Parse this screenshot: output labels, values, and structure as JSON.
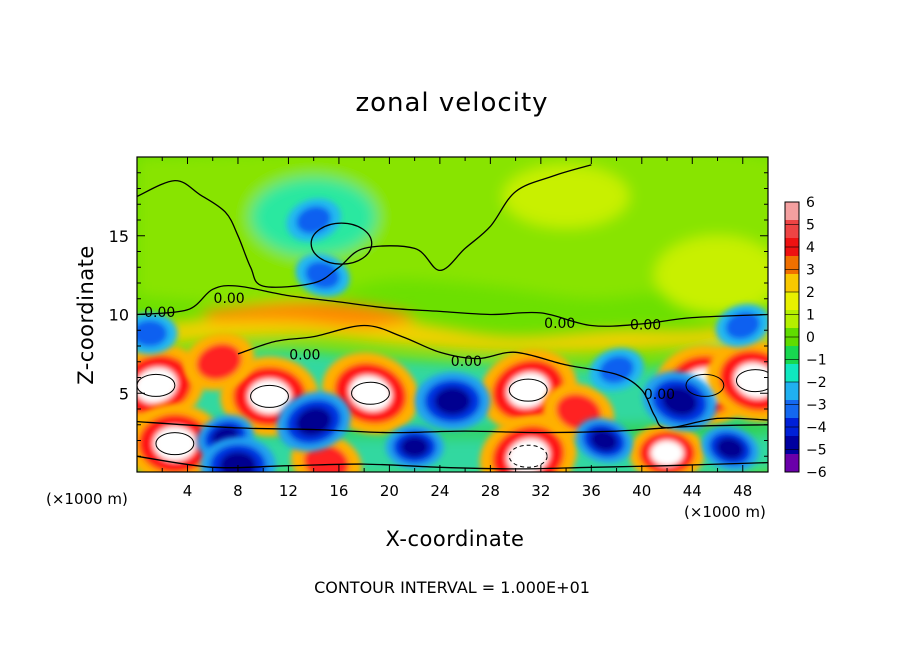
{
  "chart_data": {
    "type": "heatmap",
    "title": "zonal velocity",
    "xlabel": "X-coordinate",
    "ylabel": "Z-coordinate",
    "x_unit_label_left": "(×1000 m)",
    "x_unit_label_right": "(×1000 m)",
    "xlim": [
      0,
      50
    ],
    "ylim": [
      0,
      20
    ],
    "xticks": [
      4,
      8,
      12,
      16,
      20,
      24,
      28,
      32,
      36,
      40,
      44,
      48
    ],
    "yticks": [
      5,
      10,
      15
    ],
    "colorbar": {
      "min": -6,
      "max": 6,
      "ticks": [
        "6",
        "5",
        "4",
        "3",
        "2",
        "1",
        "0",
        "−1",
        "−2",
        "−3",
        "−4",
        "−5",
        "−6"
      ],
      "colors": [
        "#f4a0a0",
        "#ee4444",
        "#ee1111",
        "#f07000",
        "#f8c800",
        "#e8f000",
        "#b4f000",
        "#60dc00",
        "#18d850",
        "#10e8c0",
        "#20b0f0",
        "#1468f0",
        "#0020d8",
        "#0000a0",
        "#6a00aa"
      ]
    },
    "contour_labels": [
      {
        "text": "0.00",
        "x": 1.8,
        "z": 10.1
      },
      {
        "text": "0.00",
        "x": 7.3,
        "z": 11.0
      },
      {
        "text": "0.00",
        "x": 13.3,
        "z": 7.4
      },
      {
        "text": "0.00",
        "x": 26.1,
        "z": 7.0
      },
      {
        "text": "0.00",
        "x": 33.5,
        "z": 9.4
      },
      {
        "text": "0.00",
        "x": 40.3,
        "z": 9.3
      },
      {
        "text": "0.00",
        "x": 41.4,
        "z": 4.9
      }
    ],
    "features": [
      {
        "kind": "positive-max",
        "x": 1.5,
        "z": 5.5,
        "value": 10
      },
      {
        "kind": "positive-max",
        "x": 10.5,
        "z": 4.8,
        "value": 10
      },
      {
        "kind": "positive-max",
        "x": 18.5,
        "z": 5.0,
        "value": 10
      },
      {
        "kind": "positive-max",
        "x": 31,
        "z": 5.2,
        "value": 10
      },
      {
        "kind": "positive-max",
        "x": 45,
        "z": 5.5,
        "value": 10
      },
      {
        "kind": "positive-max",
        "x": 49,
        "z": 5.8,
        "value": 10
      },
      {
        "kind": "positive-max",
        "x": 6.5,
        "z": 7.0,
        "value": 6
      },
      {
        "kind": "positive-max",
        "x": 3,
        "z": 1.8,
        "value": 10
      },
      {
        "kind": "positive-max",
        "x": 15,
        "z": 0.6,
        "value": 6
      },
      {
        "kind": "positive-max",
        "x": 31,
        "z": 1.0,
        "value": 10
      },
      {
        "kind": "positive-max",
        "x": 42,
        "z": 1.2,
        "value": 8
      },
      {
        "kind": "positive-max",
        "x": 35,
        "z": 3.8,
        "value": 6
      },
      {
        "kind": "negative-min",
        "x": 14,
        "z": 3.2,
        "value": -6
      },
      {
        "kind": "negative-min",
        "x": 25,
        "z": 4.5,
        "value": -6
      },
      {
        "kind": "negative-min",
        "x": 43,
        "z": 4.5,
        "value": -6
      },
      {
        "kind": "negative-min",
        "x": 48,
        "z": 9.3,
        "value": -4
      },
      {
        "kind": "negative-min",
        "x": 1,
        "z": 8.8,
        "value": -3
      },
      {
        "kind": "negative-min",
        "x": 14.7,
        "z": 12.5,
        "value": -4
      },
      {
        "kind": "negative-min",
        "x": 7,
        "z": 2.2,
        "value": -5
      },
      {
        "kind": "negative-min",
        "x": 22,
        "z": 1.6,
        "value": -5
      },
      {
        "kind": "negative-min",
        "x": 37,
        "z": 2.0,
        "value": -5
      },
      {
        "kind": "negative-min",
        "x": 38,
        "z": 6.5,
        "value": -4
      },
      {
        "kind": "negative-min",
        "x": 8,
        "z": 0.4,
        "value": -6
      },
      {
        "kind": "negative-min",
        "x": 47,
        "z": 1.5,
        "value": -5
      },
      {
        "kind": "negative-min",
        "x": 14,
        "z": 16,
        "value": -2
      }
    ]
  },
  "footer": {
    "contour_interval": "CONTOUR INTERVAL = 1.000E+01"
  }
}
